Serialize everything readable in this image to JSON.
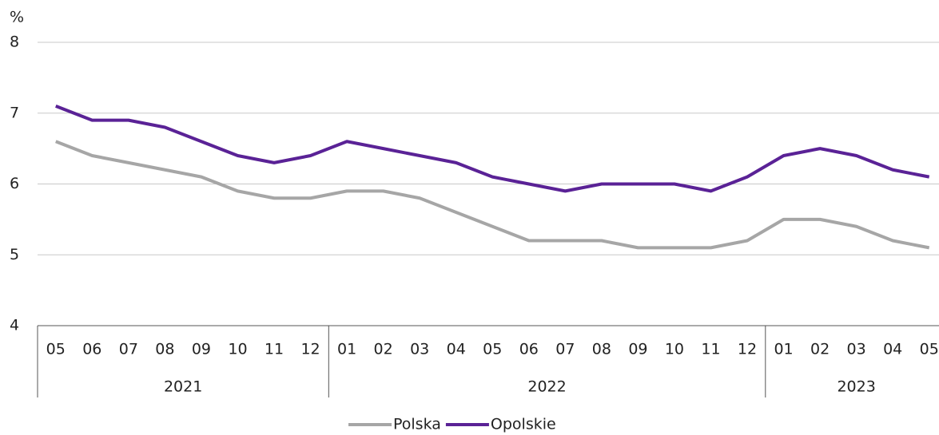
{
  "chart_data": {
    "type": "line",
    "y_unit": "%",
    "groups": [
      {
        "label": "2021",
        "categories": [
          "05",
          "06",
          "07",
          "08",
          "09",
          "10",
          "11",
          "12"
        ]
      },
      {
        "label": "2022",
        "categories": [
          "01",
          "02",
          "03",
          "04",
          "05",
          "06",
          "07",
          "08",
          "09",
          "10",
          "11",
          "12"
        ]
      },
      {
        "label": "2023",
        "categories": [
          "01",
          "02",
          "03",
          "04",
          "05"
        ]
      }
    ],
    "series": [
      {
        "name": "Polska",
        "color": "#a6a6a6",
        "values": [
          6.6,
          6.4,
          6.3,
          6.2,
          6.1,
          5.9,
          5.8,
          5.8,
          5.9,
          5.9,
          5.8,
          5.6,
          5.4,
          5.2,
          5.2,
          5.2,
          5.1,
          5.1,
          5.1,
          5.2,
          5.5,
          5.5,
          5.4,
          5.2,
          5.1
        ]
      },
      {
        "name": "Opolskie",
        "color": "#5a2296",
        "values": [
          7.1,
          6.9,
          6.9,
          6.8,
          6.6,
          6.4,
          6.3,
          6.4,
          6.6,
          6.5,
          6.4,
          6.3,
          6.1,
          6.0,
          5.9,
          6.0,
          6.0,
          6.0,
          5.9,
          6.1,
          6.4,
          6.5,
          6.4,
          6.2,
          6.1
        ]
      }
    ],
    "ylim": [
      4,
      8
    ],
    "yticks": [
      4,
      5,
      6,
      7,
      8
    ],
    "grid": true,
    "legend": "bottom"
  }
}
